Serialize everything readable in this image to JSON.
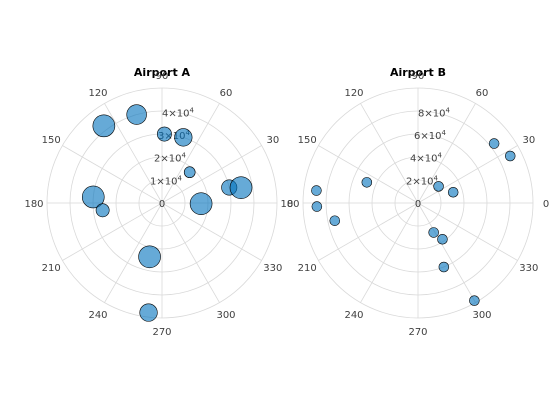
{
  "chart_data": [
    {
      "type": "scatter",
      "projection": "polar",
      "title": "Airport A",
      "theta_unit": "degrees",
      "theta_ticks": [
        "0",
        "30",
        "60",
        "90",
        "120",
        "150",
        "180",
        "210",
        "240",
        "270",
        "300",
        "330"
      ],
      "r_max": 50000,
      "r_ticks": [
        {
          "value": 0,
          "label": "0"
        },
        {
          "value": 10000,
          "label": "1×10"
        },
        {
          "value": 20000,
          "label": "2×10"
        },
        {
          "value": 30000,
          "label": "3×10"
        },
        {
          "value": 40000,
          "label": "4×10"
        }
      ],
      "r_tick_exponent": "4",
      "grid": true,
      "marker_color": "#0072BD",
      "points": [
        {
          "theta": 72,
          "r": 30000,
          "size": 0.8
        },
        {
          "theta": 88,
          "r": 30000,
          "size": 0.65
        },
        {
          "theta": 106,
          "r": 40000,
          "size": 0.9
        },
        {
          "theta": 127,
          "r": 42000,
          "size": 1.0
        },
        {
          "theta": 48,
          "r": 18000,
          "size": 0.5
        },
        {
          "theta": 13,
          "r": 30000,
          "size": 0.7
        },
        {
          "theta": 11,
          "r": 35000,
          "size": 1.0
        },
        {
          "theta": -1,
          "r": 17000,
          "size": 1.0
        },
        {
          "theta": 175,
          "r": 30000,
          "size": 1.0
        },
        {
          "theta": 187,
          "r": 26000,
          "size": 0.6
        },
        {
          "theta": 257,
          "r": 24000,
          "size": 1.0
        },
        {
          "theta": 263,
          "r": 48000,
          "size": 0.8
        }
      ]
    },
    {
      "type": "scatter",
      "projection": "polar",
      "title": "Airport B",
      "theta_unit": "degrees",
      "theta_ticks": [
        "0",
        "30",
        "60",
        "90",
        "120",
        "150",
        "180",
        "210",
        "240",
        "270",
        "300",
        "330"
      ],
      "r_max": 100000,
      "r_ticks": [
        {
          "value": 0,
          "label": "0"
        },
        {
          "value": 20000,
          "label": "2×10"
        },
        {
          "value": 40000,
          "label": "4×10"
        },
        {
          "value": 60000,
          "label": "6×10"
        },
        {
          "value": 80000,
          "label": "8×10"
        }
      ],
      "r_tick_exponent": "4",
      "grid": true,
      "marker_color": "#0072BD",
      "points": [
        {
          "theta": 38,
          "r": 84000,
          "size": 0.45
        },
        {
          "theta": 27,
          "r": 90000,
          "size": 0.45
        },
        {
          "theta": 39,
          "r": 23000,
          "size": 0.45
        },
        {
          "theta": 17,
          "r": 32000,
          "size": 0.45
        },
        {
          "theta": 158,
          "r": 48000,
          "size": 0.45
        },
        {
          "theta": 173,
          "r": 89000,
          "size": 0.45
        },
        {
          "theta": 182,
          "r": 88000,
          "size": 0.45
        },
        {
          "theta": 192,
          "r": 74000,
          "size": 0.45
        },
        {
          "theta": 298,
          "r": 29000,
          "size": 0.45
        },
        {
          "theta": 304,
          "r": 38000,
          "size": 0.45
        },
        {
          "theta": 292,
          "r": 60000,
          "size": 0.45
        },
        {
          "theta": 300,
          "r": 98000,
          "size": 0.45
        }
      ]
    }
  ]
}
